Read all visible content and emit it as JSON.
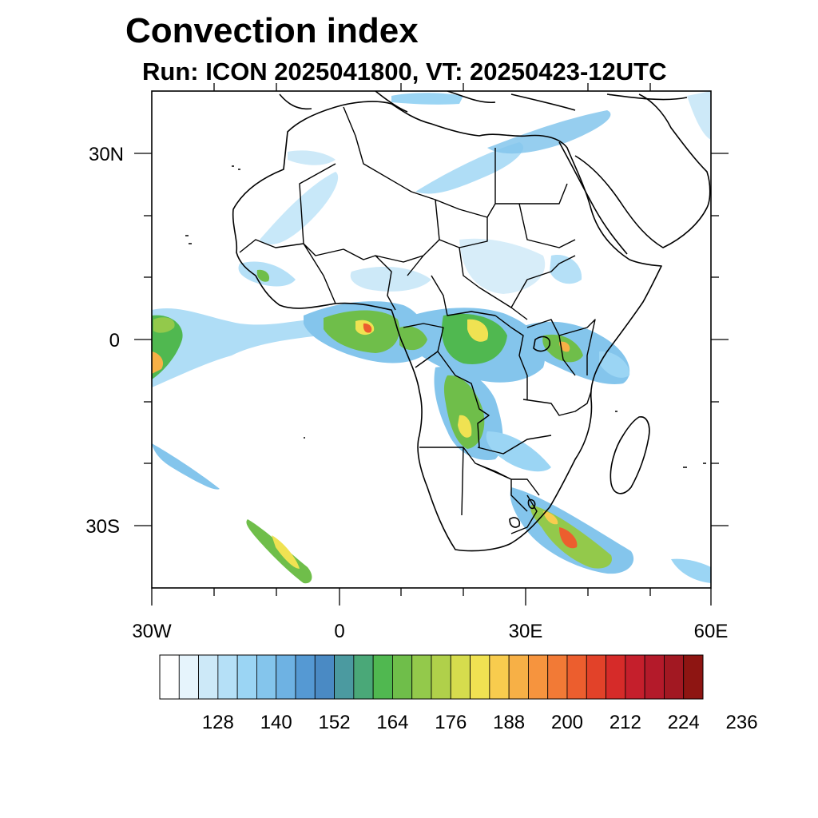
{
  "title": "Convection index",
  "subtitle": "Run: ICON 2025041800,  VT: 20250423-12UTC",
  "axes": {
    "lon_ticks": [
      "30W",
      "0",
      "30E",
      "60E"
    ],
    "lat_ticks": [
      "30N",
      "0",
      "30S"
    ]
  },
  "colorbar": {
    "colors": [
      "#ffffff",
      "#e6f4fc",
      "#cde9f8",
      "#b5e0f7",
      "#9bd5f4",
      "#84c5ec",
      "#6eb2e3",
      "#5599d3",
      "#4a8ac4",
      "#4b9aa0",
      "#4aa878",
      "#50b850",
      "#6fbe4a",
      "#93c94b",
      "#b0d04a",
      "#d6dc4d",
      "#f0e252",
      "#f8cc4e",
      "#f7b046",
      "#f6943e",
      "#f27a36",
      "#ec5e2e",
      "#e24229",
      "#d62b29",
      "#c51f2c",
      "#b41a2a",
      "#a21822",
      "#8e1512"
    ],
    "labels": [
      "128",
      "140",
      "152",
      "164",
      "176",
      "188",
      "200",
      "212",
      "224",
      "236"
    ]
  }
}
